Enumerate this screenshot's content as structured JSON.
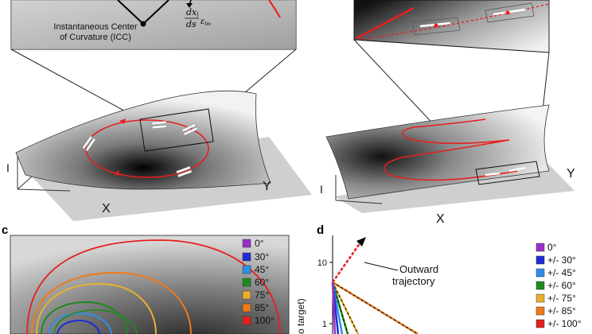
{
  "panel_a": {
    "icc_line1": "Instantaneous Center",
    "icc_line2": "of Curvature (ICC)",
    "formula_num": "dx",
    "formula_num_sub": "l",
    "formula_den": "ds",
    "formula_eps": "ε",
    "formula_eps_sub": "lm",
    "axis_i": "I",
    "axis_x": "X",
    "axis_y": "Y"
  },
  "panel_b": {
    "axis_i": "I",
    "axis_x": "X",
    "axis_y": "Y"
  },
  "panel_c": {
    "letter": "c",
    "legend": [
      {
        "label": "0°",
        "color": "#9b2fc9"
      },
      {
        "label": "30°",
        "color": "#1f2bd6"
      },
      {
        "label": "45°",
        "color": "#2f8fe8"
      },
      {
        "label": "60°",
        "color": "#1f8a1f"
      },
      {
        "label": "75°",
        "color": "#e8b030"
      },
      {
        "label": "85°",
        "color": "#f07a1a"
      },
      {
        "label": "100°",
        "color": "#e81e1e"
      }
    ]
  },
  "panel_d": {
    "letter": "d",
    "annotation_line1": "Outward",
    "annotation_line2": "trajectory",
    "tick_10": "10",
    "tick_1": "1",
    "ylabel_fragment": "o target)",
    "legend": [
      {
        "label": "0°",
        "color": "#9b2fc9"
      },
      {
        "label": "+/- 30°",
        "color": "#1f2bd6"
      },
      {
        "label": "+/- 45°",
        "color": "#2f8fe8"
      },
      {
        "label": "+/- 60°",
        "color": "#1f8a1f"
      },
      {
        "label": "+/- 75°",
        "color": "#e8b030"
      },
      {
        "label": "+/- 85°",
        "color": "#f07a1a"
      },
      {
        "label": "+/- 100°",
        "color": "#e81e1e"
      }
    ]
  }
}
